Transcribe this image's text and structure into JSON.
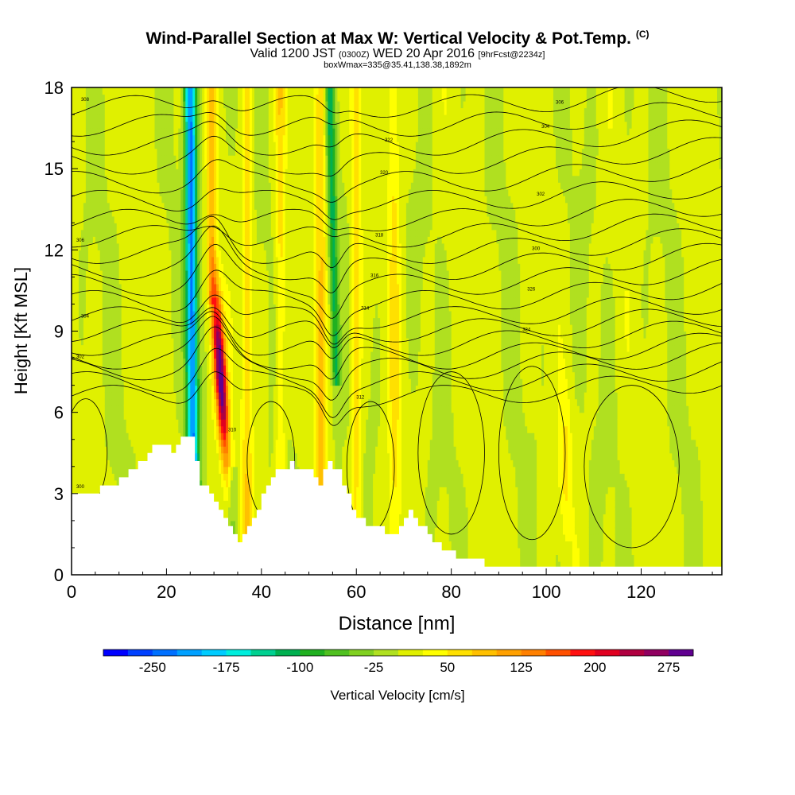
{
  "title": {
    "main": "Wind-Parallel Section at Max W: Vertical Velocity & Pot.Temp.",
    "copyright": "(C)",
    "valid_prefix": "Valid 1200 JST",
    "valid_utc": "(0300Z)",
    "valid_date": "WED 20 Apr 2016",
    "forecast": "[9hrFcst@2234z]",
    "box": "boxWmax=335@35.41,138.38,1892m"
  },
  "chart_data": {
    "type": "heatmap",
    "xlabel": "Distance [nm]",
    "ylabel": "Height [Kft MSL]",
    "xlim": [
      0,
      137
    ],
    "ylim": [
      0,
      18
    ],
    "x_ticks": [
      "0",
      "20",
      "40",
      "60",
      "80",
      "100",
      "120"
    ],
    "y_ticks": [
      "0",
      "3",
      "6",
      "9",
      "12",
      "15",
      "18"
    ],
    "colorbar": {
      "label": "Vertical Velocity [cm/s]",
      "tick_labels": [
        "-250",
        "-175",
        "-100",
        "-25",
        "50",
        "125",
        "200",
        "275"
      ],
      "colors": [
        "#0000ff",
        "#0040ff",
        "#0070ff",
        "#00a0ff",
        "#00ccff",
        "#00eedd",
        "#00d090",
        "#00b050",
        "#20b020",
        "#50c020",
        "#80d020",
        "#b0e020",
        "#e0f000",
        "#ffff00",
        "#ffe000",
        "#ffc000",
        "#ffa000",
        "#ff8000",
        "#ff5000",
        "#ff1010",
        "#e00020",
        "#b00040",
        "#900060",
        "#600090"
      ]
    },
    "terrain_kft": [
      [
        0,
        2.9
      ],
      [
        4,
        2.9
      ],
      [
        6,
        3.2
      ],
      [
        9,
        3.4
      ],
      [
        12,
        3.8
      ],
      [
        15,
        4.2
      ],
      [
        17,
        4.7
      ],
      [
        19,
        4.9
      ],
      [
        21,
        4.6
      ],
      [
        23,
        5.2
      ],
      [
        25,
        5.1
      ],
      [
        27,
        3.4
      ],
      [
        29,
        3.0
      ],
      [
        31,
        2.4
      ],
      [
        33,
        1.8
      ],
      [
        35,
        1.3
      ],
      [
        37,
        1.7
      ],
      [
        39,
        2.5
      ],
      [
        41,
        3.2
      ],
      [
        43,
        3.8
      ],
      [
        46,
        4.1
      ],
      [
        48,
        3.9
      ],
      [
        50,
        3.8
      ],
      [
        52,
        3.4
      ],
      [
        54,
        4.2
      ],
      [
        56,
        3.8
      ],
      [
        58,
        3.0
      ],
      [
        60,
        2.0
      ],
      [
        63,
        1.9
      ],
      [
        65,
        1.7
      ],
      [
        67,
        1.5
      ],
      [
        69,
        1.7
      ],
      [
        71,
        2.3
      ],
      [
        73,
        1.9
      ],
      [
        75,
        1.4
      ],
      [
        77,
        1.1
      ],
      [
        80,
        0.8
      ],
      [
        83,
        0.6
      ],
      [
        86,
        0.5
      ],
      [
        88,
        0.3
      ],
      [
        100,
        0.3
      ],
      [
        137,
        0.3
      ]
    ],
    "updraft_features": [
      {
        "x": 26,
        "center": -210
      },
      {
        "x": 31.5,
        "center": 290
      },
      {
        "x": 55,
        "center": -110
      },
      {
        "x": 53,
        "center": 65
      },
      {
        "x": 37,
        "center": 50
      },
      {
        "x": 104,
        "center": 90
      }
    ],
    "isentrope_labels": [
      "300",
      "302",
      "304",
      "306",
      "308",
      "310",
      "312",
      "314",
      "316",
      "318",
      "320",
      "322",
      "324",
      "326"
    ]
  }
}
